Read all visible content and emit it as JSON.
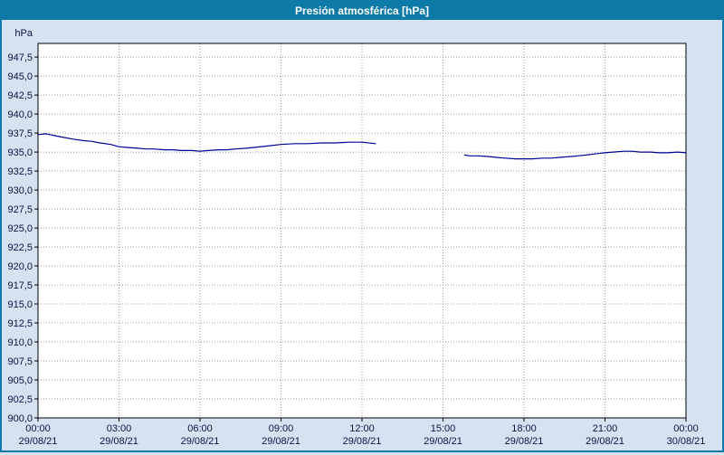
{
  "title": "Presión atmosférica [hPa]",
  "colors": {
    "titlebar_bg": "#0e7aa8",
    "titlebar_text": "#ffffff",
    "background": "#d6e1f2",
    "plot_bg": "#ffffff",
    "grid": "#9a9a9a",
    "axis_line": "#000000",
    "text": "#0a1440",
    "line": "#000099",
    "border": "#0e7aa8"
  },
  "chart_data": {
    "type": "line",
    "title": "Presión atmosférica [hPa]",
    "ylabel": "hPa",
    "ylim": [
      900.0,
      949.3
    ],
    "ytick_max": 947.5,
    "ytick_step": 2.5,
    "ytick_labels": [
      "947,5",
      "945,0",
      "942,5",
      "940,0",
      "937,5",
      "935,0",
      "932,5",
      "930,0",
      "927,5",
      "925,0",
      "922,5",
      "920,0",
      "917,5",
      "915,0",
      "912,5",
      "910,0",
      "907,5",
      "905,0",
      "902,5",
      "900,0"
    ],
    "x_hours_range": [
      0,
      24
    ],
    "grid": true,
    "legend": "none",
    "xticks": [
      {
        "hour": 0,
        "time": "00:00",
        "date": "29/08/21"
      },
      {
        "hour": 3,
        "time": "03:00",
        "date": "29/08/21"
      },
      {
        "hour": 6,
        "time": "06:00",
        "date": "29/08/21"
      },
      {
        "hour": 9,
        "time": "09:00",
        "date": "29/08/21"
      },
      {
        "hour": 12,
        "time": "12:00",
        "date": "29/08/21"
      },
      {
        "hour": 15,
        "time": "15:00",
        "date": "29/08/21"
      },
      {
        "hour": 18,
        "time": "18:00",
        "date": "29/08/21"
      },
      {
        "hour": 21,
        "time": "21:00",
        "date": "29/08/21"
      },
      {
        "hour": 24,
        "time": "00:00",
        "date": "30/08/21"
      }
    ],
    "series": [
      {
        "name": "Presión atmosférica",
        "color": "#000099",
        "segments": [
          {
            "x": [
              0,
              0.3,
              0.7,
              1.0,
              1.3,
              1.7,
              2.0,
              2.3,
              2.7,
              3.0,
              3.3,
              3.7,
              4.0,
              4.3,
              4.7,
              5.0,
              5.3,
              5.7,
              6.0,
              6.3,
              6.7,
              7.0,
              7.3,
              7.7,
              8.0,
              8.5,
              9.0,
              9.5,
              10.0,
              10.5,
              11.0,
              11.5,
              12.0,
              12.5
            ],
            "y": [
              937.3,
              937.4,
              937.1,
              936.9,
              936.7,
              936.5,
              936.4,
              936.2,
              936.0,
              935.7,
              935.6,
              935.5,
              935.4,
              935.4,
              935.3,
              935.3,
              935.2,
              935.2,
              935.1,
              935.2,
              935.3,
              935.3,
              935.4,
              935.5,
              935.6,
              935.8,
              936.0,
              936.1,
              936.1,
              936.2,
              936.2,
              936.3,
              936.3,
              936.1
            ]
          },
          {
            "x": [
              15.8,
              16.0,
              16.3,
              16.7,
              17.0,
              17.3,
              17.7,
              18.0,
              18.3,
              18.7,
              19.0,
              19.3,
              19.7,
              20.0,
              20.3,
              20.7,
              21.0,
              21.3,
              21.7,
              22.0,
              22.3,
              22.7,
              23.0,
              23.3,
              23.7,
              24.0
            ],
            "y": [
              934.6,
              934.5,
              934.5,
              934.4,
              934.3,
              934.2,
              934.1,
              934.1,
              934.1,
              934.2,
              934.2,
              934.3,
              934.4,
              934.5,
              934.6,
              934.8,
              934.9,
              935.0,
              935.1,
              935.1,
              935.0,
              935.0,
              934.9,
              934.9,
              935.0,
              934.9
            ]
          }
        ]
      }
    ]
  }
}
